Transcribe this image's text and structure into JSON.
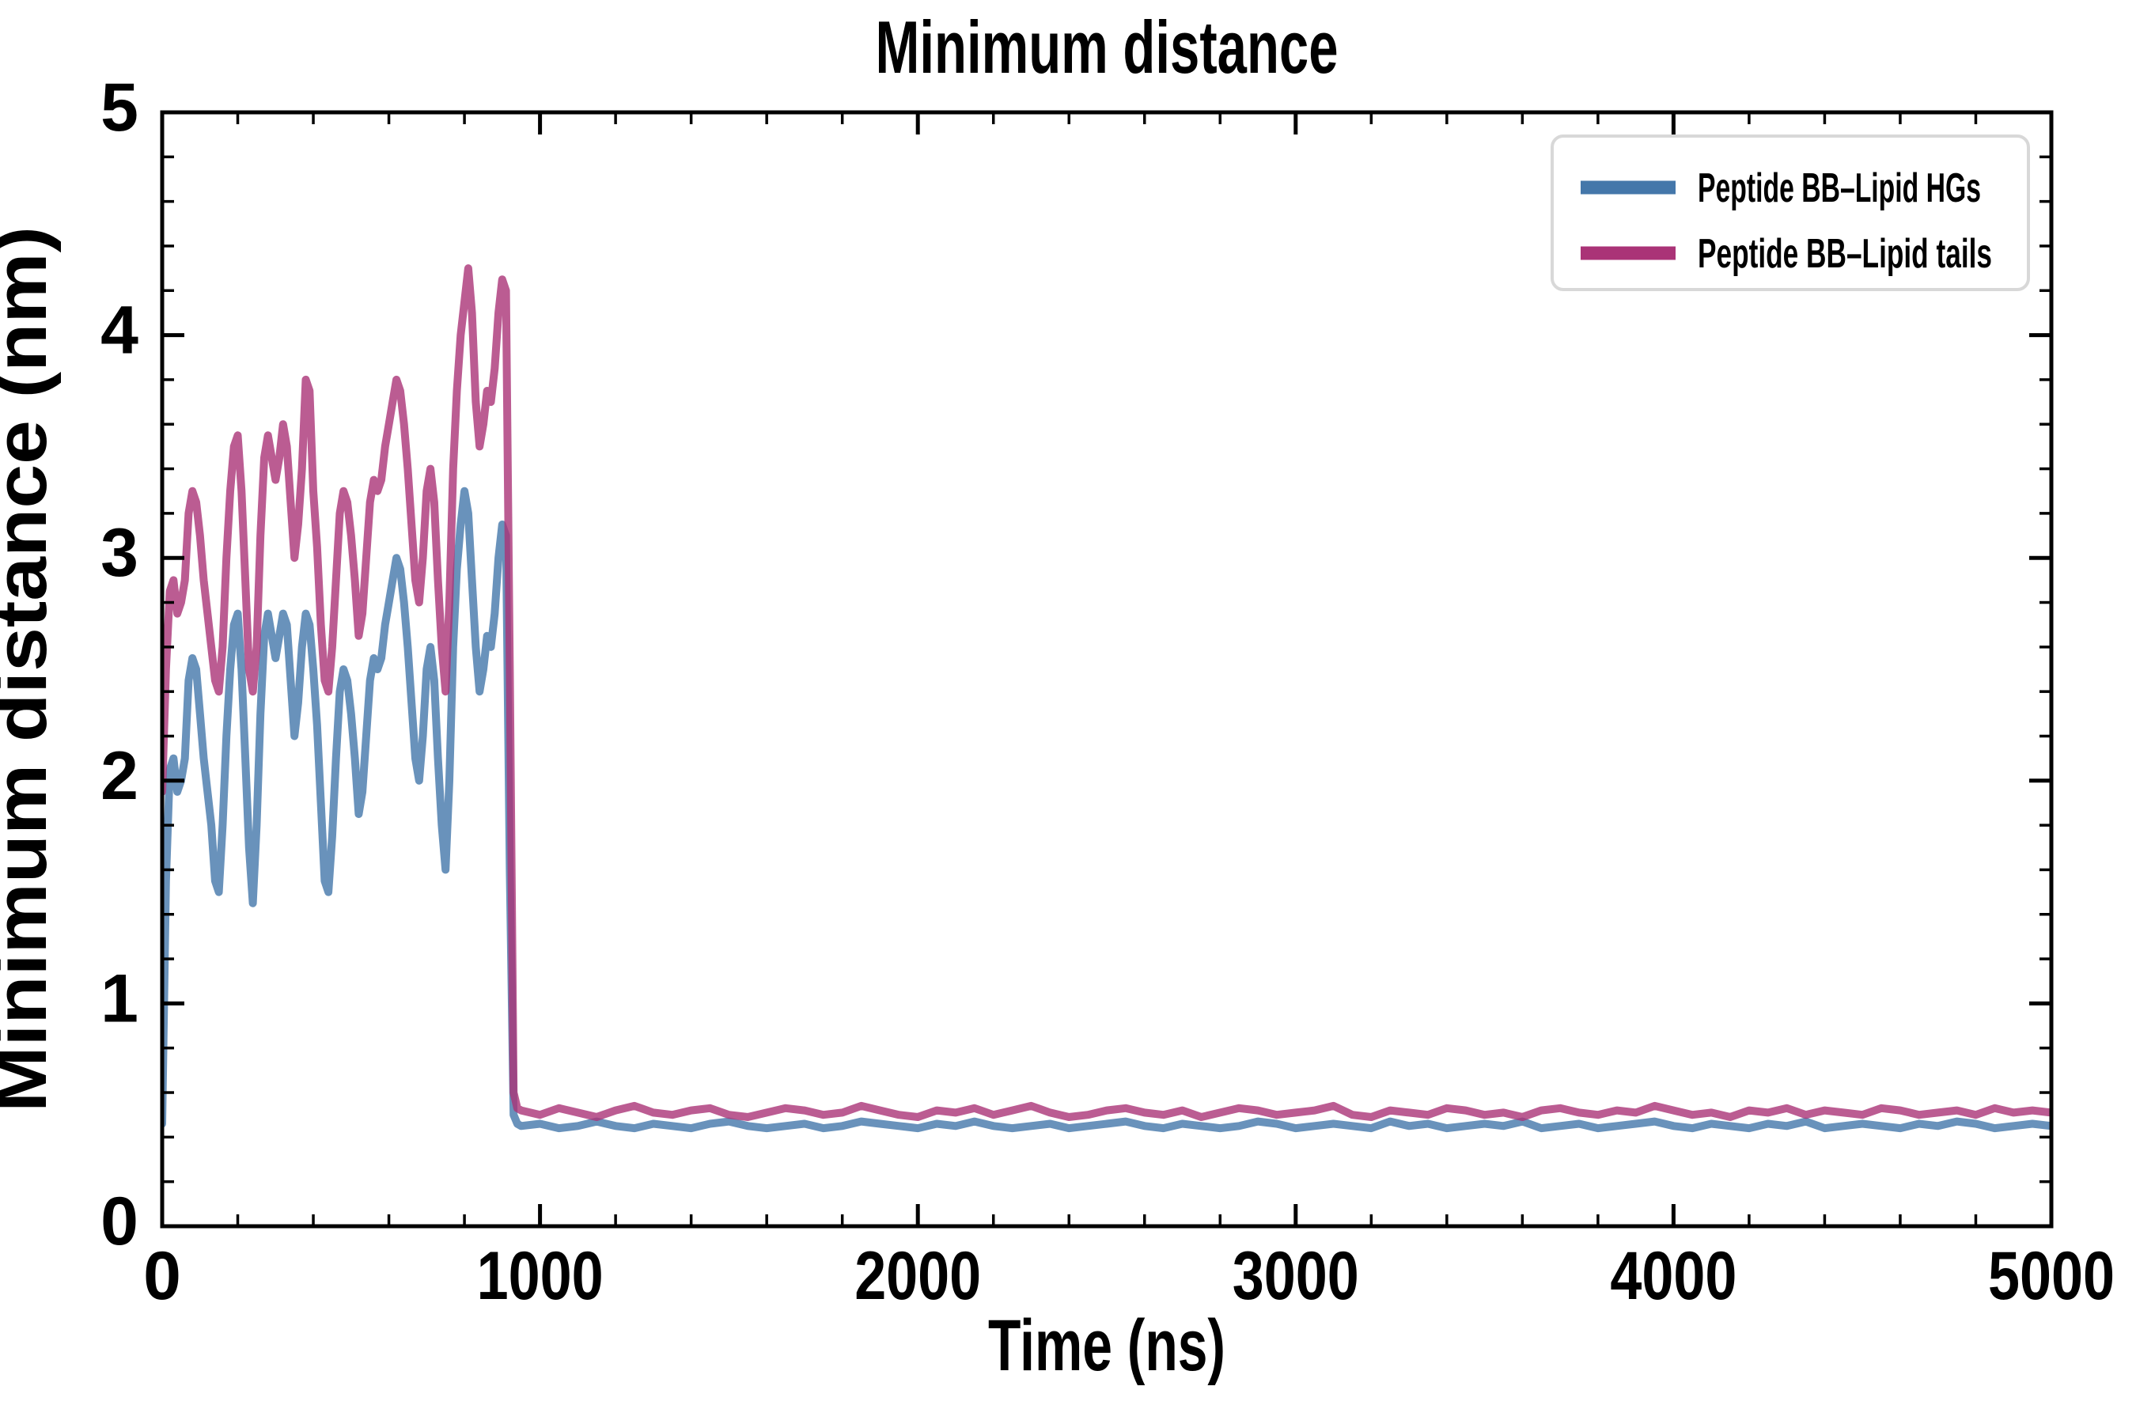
{
  "figure": {
    "title": "Minimum distance"
  },
  "chart_data": {
    "type": "line",
    "title": "Minimum distance",
    "xlabel": "Time (ns)",
    "ylabel": "Minimum distance (nm)",
    "xlim": [
      0,
      5000
    ],
    "ylim": [
      0,
      5
    ],
    "grid": false,
    "tick_direction": "in",
    "x_ticks_major": [
      0,
      1000,
      2000,
      3000,
      4000,
      5000
    ],
    "x_ticks_minor": [
      200,
      400,
      600,
      800,
      1200,
      1400,
      1600,
      1800,
      2200,
      2400,
      2600,
      2800,
      3200,
      3400,
      3600,
      3800,
      4200,
      4400,
      4600,
      4800
    ],
    "y_ticks_major": [
      0,
      1,
      2,
      3,
      4,
      5
    ],
    "y_ticks_minor": [
      0.2,
      0.4,
      0.6,
      0.8,
      1.2,
      1.4,
      1.6,
      1.8,
      2.2,
      2.4,
      2.6,
      2.8,
      3.2,
      3.4,
      3.6,
      3.8,
      4.2,
      4.4,
      4.6,
      4.8
    ],
    "legend": {
      "position": "upper right",
      "border_color": "#d8d8d8",
      "background": "#ffffff"
    },
    "line_opacity": 0.8,
    "x": [
      0,
      10,
      20,
      30,
      40,
      50,
      60,
      70,
      80,
      90,
      100,
      110,
      120,
      130,
      140,
      150,
      160,
      170,
      180,
      190,
      200,
      210,
      220,
      230,
      240,
      250,
      260,
      270,
      280,
      290,
      300,
      310,
      320,
      330,
      340,
      350,
      360,
      370,
      380,
      390,
      400,
      410,
      420,
      430,
      440,
      450,
      460,
      470,
      480,
      490,
      500,
      510,
      520,
      530,
      540,
      550,
      560,
      570,
      580,
      590,
      600,
      610,
      620,
      630,
      640,
      650,
      660,
      670,
      680,
      690,
      700,
      710,
      720,
      730,
      740,
      750,
      760,
      770,
      780,
      790,
      800,
      810,
      820,
      830,
      840,
      850,
      860,
      870,
      880,
      890,
      900,
      910,
      920,
      930,
      940,
      950,
      1000,
      1050,
      1100,
      1150,
      1200,
      1250,
      1300,
      1350,
      1400,
      1450,
      1500,
      1550,
      1600,
      1650,
      1700,
      1750,
      1800,
      1850,
      1900,
      1950,
      2000,
      2050,
      2100,
      2150,
      2200,
      2250,
      2300,
      2350,
      2400,
      2450,
      2500,
      2550,
      2600,
      2650,
      2700,
      2750,
      2800,
      2850,
      2900,
      2950,
      3000,
      3050,
      3100,
      3150,
      3200,
      3250,
      3300,
      3350,
      3400,
      3450,
      3500,
      3550,
      3600,
      3650,
      3700,
      3750,
      3800,
      3850,
      3900,
      3950,
      4000,
      4050,
      4100,
      4150,
      4200,
      4250,
      4300,
      4350,
      4400,
      4450,
      4500,
      4550,
      4600,
      4650,
      4700,
      4750,
      4800,
      4850,
      4900,
      4950,
      5000
    ],
    "series": [
      {
        "name": "Peptide BB–Lipid HGs",
        "color": "#4477AA",
        "values": [
          0.46,
          1.55,
          2.05,
          2.1,
          1.95,
          2.0,
          2.1,
          2.45,
          2.55,
          2.5,
          2.3,
          2.1,
          1.95,
          1.8,
          1.55,
          1.5,
          1.8,
          2.2,
          2.5,
          2.7,
          2.75,
          2.5,
          2.1,
          1.7,
          1.45,
          1.8,
          2.3,
          2.65,
          2.75,
          2.65,
          2.55,
          2.65,
          2.75,
          2.7,
          2.45,
          2.2,
          2.35,
          2.6,
          2.75,
          2.7,
          2.5,
          2.25,
          1.9,
          1.55,
          1.5,
          1.75,
          2.1,
          2.4,
          2.5,
          2.45,
          2.3,
          2.1,
          1.85,
          1.95,
          2.2,
          2.45,
          2.55,
          2.5,
          2.55,
          2.7,
          2.8,
          2.9,
          3.0,
          2.95,
          2.8,
          2.6,
          2.35,
          2.1,
          2.0,
          2.2,
          2.5,
          2.6,
          2.45,
          2.1,
          1.8,
          1.6,
          2.0,
          2.6,
          2.95,
          3.15,
          3.3,
          3.2,
          2.9,
          2.6,
          2.4,
          2.5,
          2.65,
          2.6,
          2.75,
          3.0,
          3.15,
          3.1,
          1.6,
          0.5,
          0.46,
          0.45,
          0.46,
          0.44,
          0.45,
          0.47,
          0.45,
          0.44,
          0.46,
          0.45,
          0.44,
          0.46,
          0.47,
          0.45,
          0.44,
          0.45,
          0.46,
          0.44,
          0.45,
          0.47,
          0.46,
          0.45,
          0.44,
          0.46,
          0.45,
          0.47,
          0.45,
          0.44,
          0.45,
          0.46,
          0.44,
          0.45,
          0.46,
          0.47,
          0.45,
          0.44,
          0.46,
          0.45,
          0.44,
          0.45,
          0.47,
          0.46,
          0.44,
          0.45,
          0.46,
          0.45,
          0.44,
          0.47,
          0.45,
          0.46,
          0.44,
          0.45,
          0.46,
          0.45,
          0.47,
          0.44,
          0.45,
          0.46,
          0.44,
          0.45,
          0.46,
          0.47,
          0.45,
          0.44,
          0.46,
          0.45,
          0.44,
          0.46,
          0.45,
          0.47,
          0.44,
          0.45,
          0.46,
          0.45,
          0.44,
          0.46,
          0.45,
          0.47,
          0.46,
          0.44,
          0.45,
          0.46,
          0.45
        ]
      },
      {
        "name": "Peptide BB–Lipid tails",
        "color": "#AA3377",
        "values": [
          1.95,
          2.5,
          2.85,
          2.9,
          2.75,
          2.8,
          2.9,
          3.2,
          3.3,
          3.25,
          3.1,
          2.9,
          2.75,
          2.6,
          2.45,
          2.4,
          2.6,
          3.0,
          3.3,
          3.5,
          3.55,
          3.3,
          2.9,
          2.5,
          2.4,
          2.6,
          3.1,
          3.45,
          3.55,
          3.45,
          3.35,
          3.45,
          3.6,
          3.5,
          3.25,
          3.0,
          3.15,
          3.4,
          3.8,
          3.75,
          3.3,
          3.05,
          2.7,
          2.45,
          2.4,
          2.6,
          2.9,
          3.2,
          3.3,
          3.25,
          3.1,
          2.9,
          2.65,
          2.75,
          3.0,
          3.25,
          3.35,
          3.3,
          3.35,
          3.5,
          3.6,
          3.7,
          3.8,
          3.75,
          3.6,
          3.4,
          3.15,
          2.9,
          2.8,
          3.0,
          3.3,
          3.4,
          3.25,
          2.9,
          2.6,
          2.4,
          2.8,
          3.4,
          3.75,
          4.0,
          4.15,
          4.3,
          4.1,
          3.7,
          3.5,
          3.6,
          3.75,
          3.7,
          3.85,
          4.1,
          4.25,
          4.2,
          2.5,
          0.6,
          0.53,
          0.52,
          0.5,
          0.53,
          0.51,
          0.49,
          0.52,
          0.54,
          0.51,
          0.5,
          0.52,
          0.53,
          0.5,
          0.49,
          0.51,
          0.53,
          0.52,
          0.5,
          0.51,
          0.54,
          0.52,
          0.5,
          0.49,
          0.52,
          0.51,
          0.53,
          0.5,
          0.52,
          0.54,
          0.51,
          0.49,
          0.5,
          0.52,
          0.53,
          0.51,
          0.5,
          0.52,
          0.49,
          0.51,
          0.53,
          0.52,
          0.5,
          0.51,
          0.52,
          0.54,
          0.5,
          0.49,
          0.52,
          0.51,
          0.5,
          0.53,
          0.52,
          0.5,
          0.51,
          0.49,
          0.52,
          0.53,
          0.51,
          0.5,
          0.52,
          0.51,
          0.54,
          0.52,
          0.5,
          0.51,
          0.49,
          0.52,
          0.51,
          0.53,
          0.5,
          0.52,
          0.51,
          0.5,
          0.53,
          0.52,
          0.5,
          0.51,
          0.52,
          0.5,
          0.53,
          0.51,
          0.52,
          0.51
        ]
      }
    ]
  }
}
